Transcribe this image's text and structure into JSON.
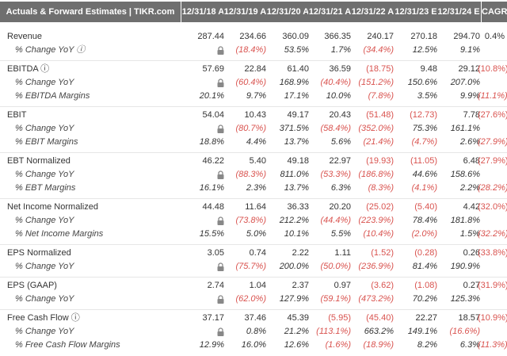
{
  "header": {
    "title": "Actuals & Forward Estimates | TIKR.com",
    "columns": [
      "12/31/18 A",
      "12/31/19 A",
      "12/31/20 A",
      "12/31/21 A",
      "12/31/22 A",
      "12/31/23 E",
      "12/31/24 E",
      "CAGR"
    ]
  },
  "table": {
    "groups": [
      {
        "rows": [
          {
            "label": "Revenue",
            "values": [
              "287.44",
              "234.66",
              "360.09",
              "366.35",
              "240.17",
              "270.18",
              "294.70",
              "0.4%"
            ]
          },
          {
            "label": "% Change YoY ⓘ",
            "values": [
              null,
              "(18.4%)",
              "53.5%",
              "1.7%",
              "(34.4%)",
              "12.5%",
              "9.1%",
              null
            ]
          }
        ]
      },
      {
        "rows": [
          {
            "label": "EBITDA ⓘ",
            "values": [
              "57.69",
              "22.84",
              "61.40",
              "36.59",
              "(18.75)",
              "9.48",
              "29.12",
              "(10.8%)"
            ]
          },
          {
            "label": "% Change YoY",
            "values": [
              null,
              "(60.4%)",
              "168.9%",
              "(40.4%)",
              "(151.2%)",
              "150.6%",
              "207.0%",
              null
            ]
          },
          {
            "label": "% EBITDA Margins",
            "values": [
              "20.1%",
              "9.7%",
              "17.1%",
              "10.0%",
              "(7.8%)",
              "3.5%",
              "9.9%",
              "(11.1%)"
            ]
          }
        ]
      },
      {
        "rows": [
          {
            "label": "EBIT",
            "values": [
              "54.04",
              "10.43",
              "49.17",
              "20.43",
              "(51.48)",
              "(12.73)",
              "7.78",
              "(27.6%)"
            ]
          },
          {
            "label": "% Change YoY",
            "values": [
              null,
              "(80.7%)",
              "371.5%",
              "(58.4%)",
              "(352.0%)",
              "75.3%",
              "161.1%",
              null
            ]
          },
          {
            "label": "% EBIT Margins",
            "values": [
              "18.8%",
              "4.4%",
              "13.7%",
              "5.6%",
              "(21.4%)",
              "(4.7%)",
              "2.6%",
              "(27.9%)"
            ]
          }
        ]
      },
      {
        "rows": [
          {
            "label": "EBT Normalized",
            "values": [
              "46.22",
              "5.40",
              "49.18",
              "22.97",
              "(19.93)",
              "(11.05)",
              "6.48",
              "(27.9%)"
            ]
          },
          {
            "label": "% Change YoY",
            "values": [
              null,
              "(88.3%)",
              "811.0%",
              "(53.3%)",
              "(186.8%)",
              "44.6%",
              "158.6%",
              null
            ]
          },
          {
            "label": "% EBT Margins",
            "values": [
              "16.1%",
              "2.3%",
              "13.7%",
              "6.3%",
              "(8.3%)",
              "(4.1%)",
              "2.2%",
              "(28.2%)"
            ]
          }
        ]
      },
      {
        "rows": [
          {
            "label": "Net Income Normalized",
            "values": [
              "44.48",
              "11.64",
              "36.33",
              "20.20",
              "(25.02)",
              "(5.40)",
              "4.42",
              "(32.0%)"
            ]
          },
          {
            "label": "% Change YoY",
            "values": [
              null,
              "(73.8%)",
              "212.2%",
              "(44.4%)",
              "(223.9%)",
              "78.4%",
              "181.8%",
              null
            ]
          },
          {
            "label": "% Net Income Margins",
            "values": [
              "15.5%",
              "5.0%",
              "10.1%",
              "5.5%",
              "(10.4%)",
              "(2.0%)",
              "1.5%",
              "(32.2%)"
            ]
          }
        ]
      },
      {
        "rows": [
          {
            "label": "EPS Normalized",
            "values": [
              "3.05",
              "0.74",
              "2.22",
              "1.11",
              "(1.52)",
              "(0.28)",
              "0.26",
              "(33.8%)"
            ]
          },
          {
            "label": "% Change YoY",
            "values": [
              null,
              "(75.7%)",
              "200.0%",
              "(50.0%)",
              "(236.9%)",
              "81.4%",
              "190.9%",
              null
            ]
          }
        ]
      },
      {
        "rows": [
          {
            "label": "EPS (GAAP)",
            "values": [
              "2.74",
              "1.04",
              "2.37",
              "0.97",
              "(3.62)",
              "(1.08)",
              "0.27",
              "(31.9%)"
            ]
          },
          {
            "label": "% Change YoY",
            "values": [
              null,
              "(62.0%)",
              "127.9%",
              "(59.1%)",
              "(473.2%)",
              "70.2%",
              "125.3%",
              null
            ]
          }
        ]
      },
      {
        "rows": [
          {
            "label": "Free Cash Flow ⓘ",
            "values": [
              "37.17",
              "37.46",
              "45.39",
              "(5.95)",
              "(45.40)",
              "22.27",
              "18.57",
              "(10.9%)"
            ]
          },
          {
            "label": "% Change YoY",
            "values": [
              null,
              "0.8%",
              "21.2%",
              "(113.1%)",
              "663.2%",
              "149.1%",
              "(16.6%)",
              null
            ]
          },
          {
            "label": "% Free Cash Flow Margins",
            "values": [
              "12.9%",
              "16.0%",
              "12.6%",
              "(1.6%)",
              "(18.9%)",
              "8.2%",
              "6.3%",
              "(11.3%)"
            ]
          }
        ]
      }
    ]
  }
}
